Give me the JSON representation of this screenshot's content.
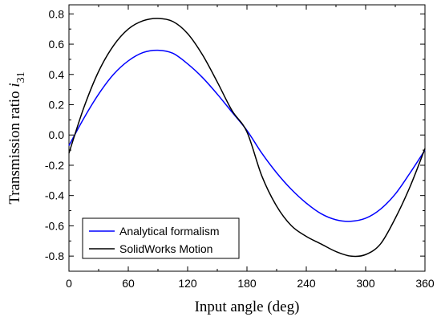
{
  "chart_data": {
    "type": "line",
    "title": "",
    "xlabel": "Input angle (deg)",
    "ylabel": {
      "text": "Transmission ratio ",
      "symbol": "i",
      "subscript": "31"
    },
    "xlim": [
      0,
      360
    ],
    "ylim": [
      -0.9,
      0.86
    ],
    "xticks": [
      0,
      60,
      120,
      180,
      240,
      300,
      360
    ],
    "xtick_labels": [
      "0",
      "60",
      "120",
      "180",
      "240",
      "300",
      "360"
    ],
    "yticks": [
      -0.8,
      -0.6,
      -0.4,
      -0.2,
      0.0,
      0.2,
      0.4,
      0.6,
      0.8
    ],
    "ytick_labels": [
      "-0.8",
      "-0.6",
      "-0.4",
      "-0.2",
      "0.0",
      "0.2",
      "0.4",
      "0.6",
      "0.8"
    ],
    "grid": false,
    "legend_position": "bottom-left",
    "series": [
      {
        "name": "Analytical formalism",
        "color": "#0000ff",
        "x": [
          0,
          15,
          30,
          45,
          60,
          75,
          90,
          105,
          120,
          135,
          150,
          165,
          180,
          195,
          210,
          225,
          240,
          255,
          270,
          285,
          300,
          315,
          330,
          345,
          360
        ],
        "y": [
          -0.07,
          0.11,
          0.27,
          0.4,
          0.49,
          0.545,
          0.56,
          0.54,
          0.47,
          0.38,
          0.27,
          0.15,
          0.03,
          -0.12,
          -0.25,
          -0.36,
          -0.45,
          -0.52,
          -0.56,
          -0.57,
          -0.55,
          -0.49,
          -0.39,
          -0.25,
          -0.1
        ]
      },
      {
        "name": "SolidWorks Motion",
        "color": "#000000",
        "x": [
          0,
          15,
          30,
          45,
          60,
          75,
          90,
          105,
          120,
          135,
          150,
          165,
          180,
          195,
          210,
          225,
          240,
          255,
          270,
          285,
          300,
          315,
          330,
          345,
          360
        ],
        "y": [
          -0.12,
          0.18,
          0.42,
          0.59,
          0.7,
          0.755,
          0.77,
          0.75,
          0.67,
          0.53,
          0.35,
          0.16,
          0.02,
          -0.27,
          -0.47,
          -0.6,
          -0.67,
          -0.72,
          -0.77,
          -0.8,
          -0.79,
          -0.72,
          -0.55,
          -0.34,
          -0.09
        ]
      }
    ]
  }
}
